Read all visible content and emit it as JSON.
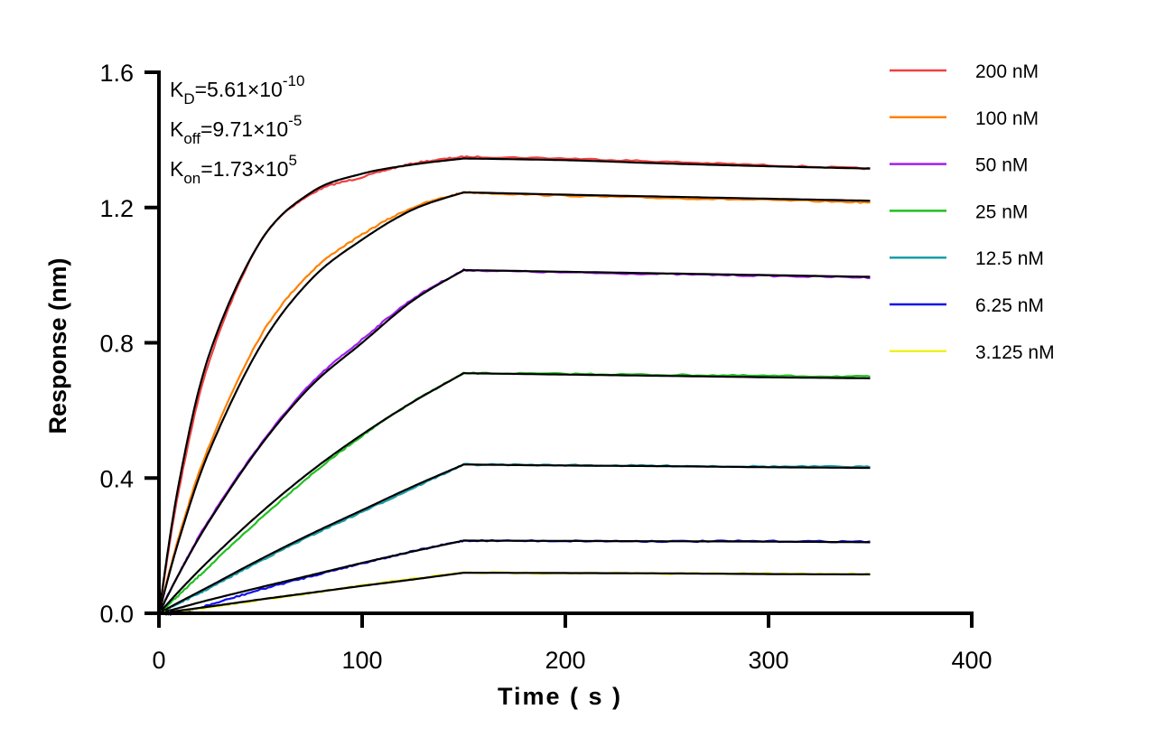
{
  "chart_data": {
    "type": "line",
    "xlabel": "Time ( s )",
    "ylabel": "Response (nm)",
    "xlim": [
      0,
      400
    ],
    "ylim": [
      0,
      1.6
    ],
    "xticks": [
      "0",
      "100",
      "200",
      "300",
      "400"
    ],
    "yticks": [
      "0.0",
      "0.4",
      "0.8",
      "1.2",
      "1.6"
    ],
    "grid": false,
    "legend_position": "right",
    "fit_color": "#000000",
    "annotations": [
      {
        "sym": "K",
        "sub": "D",
        "val": "=5.61×10",
        "sup": "-10"
      },
      {
        "sym": "K",
        "sub": "off",
        "val": "=9.71×10",
        "sup": "-5"
      },
      {
        "sym": "K",
        "sub": "on",
        "val": "=1.73×10",
        "sup": "5"
      }
    ],
    "x": [
      0,
      10,
      25,
      50,
      75,
      100,
      125,
      150,
      200,
      250,
      300,
      350
    ],
    "series": [
      {
        "name": "200 nM",
        "color": "#f04040",
        "values": [
          0,
          0.37,
          0.75,
          1.1,
          1.24,
          1.29,
          1.33,
          1.35,
          1.345,
          1.335,
          1.325,
          1.315
        ],
        "fit": [
          0,
          0.39,
          0.77,
          1.1,
          1.245,
          1.3,
          1.327,
          1.345,
          1.34,
          1.33,
          1.322,
          1.315
        ]
      },
      {
        "name": "100 nM",
        "color": "#ff8000",
        "values": [
          0,
          0.23,
          0.5,
          0.82,
          1.01,
          1.12,
          1.2,
          1.245,
          1.235,
          1.228,
          1.222,
          1.215
        ],
        "fit": [
          0,
          0.22,
          0.483,
          0.791,
          0.988,
          1.105,
          1.194,
          1.245,
          1.238,
          1.232,
          1.226,
          1.22
        ]
      },
      {
        "name": "50 nM",
        "color": "#a020f0",
        "values": [
          0,
          0.12,
          0.28,
          0.5,
          0.68,
          0.81,
          0.93,
          1.015,
          1.008,
          1.003,
          0.998,
          0.993
        ],
        "fit": [
          0,
          0.118,
          0.275,
          0.496,
          0.673,
          0.8,
          0.925,
          1.015,
          1.01,
          1.005,
          1.0,
          0.995
        ]
      },
      {
        "name": "25 nM",
        "color": "#20c020",
        "values": [
          0,
          0.055,
          0.14,
          0.28,
          0.41,
          0.525,
          0.625,
          0.71,
          0.708,
          0.705,
          0.702,
          0.7
        ],
        "fit": [
          0,
          0.066,
          0.158,
          0.297,
          0.421,
          0.529,
          0.625,
          0.71,
          0.706,
          0.702,
          0.698,
          0.695
        ]
      },
      {
        "name": "12.5 nM",
        "color": "#1a9ea8",
        "values": [
          0,
          0.03,
          0.075,
          0.155,
          0.23,
          0.3,
          0.37,
          0.44,
          0.438,
          0.436,
          0.434,
          0.433
        ],
        "fit": [
          0,
          0.033,
          0.08,
          0.16,
          0.235,
          0.305,
          0.375,
          0.44,
          0.437,
          0.435,
          0.432,
          0.43
        ]
      },
      {
        "name": "6.25 nM",
        "color": "#1010f0",
        "values": [
          0,
          0.0,
          0.025,
          0.07,
          0.11,
          0.148,
          0.183,
          0.215,
          0.214,
          0.213,
          0.213,
          0.212
        ],
        "fit": [
          0,
          0.016,
          0.04,
          0.077,
          0.113,
          0.149,
          0.183,
          0.215,
          0.214,
          0.213,
          0.212,
          0.21
        ]
      },
      {
        "name": "3.125 nM",
        "color": "#f0f020",
        "values": [
          0,
          0.006,
          0.018,
          0.04,
          0.06,
          0.082,
          0.102,
          0.12,
          0.119,
          0.118,
          0.117,
          0.116
        ],
        "fit": [
          0,
          0.008,
          0.02,
          0.041,
          0.061,
          0.081,
          0.1,
          0.12,
          0.119,
          0.118,
          0.116,
          0.115
        ]
      }
    ]
  }
}
